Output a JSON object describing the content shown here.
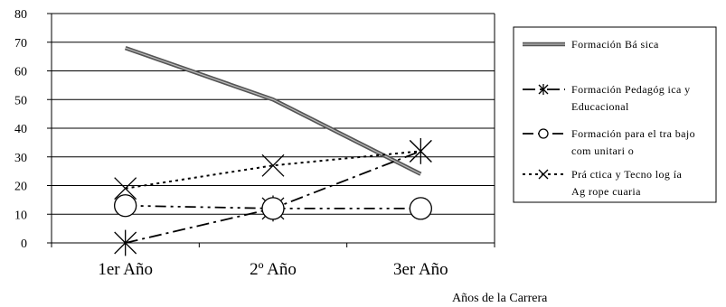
{
  "chart_data": {
    "type": "line",
    "categories": [
      "1er Año",
      "2º Año",
      "3er Año"
    ],
    "xlabel": "Años de  la Carrera",
    "ylabel": "",
    "ylim": [
      0,
      80
    ],
    "yticks": [
      0,
      10,
      20,
      30,
      40,
      50,
      60,
      70,
      80
    ],
    "grid": true,
    "legend_position": "right",
    "series": [
      {
        "name": "Formación Bá sica",
        "legend_lines": [
          "Formación Bá sica"
        ],
        "values": [
          68,
          50,
          24
        ],
        "color": "#555555",
        "style": "double-solid",
        "marker": "none"
      },
      {
        "name": "Formación Pedagógica y Educacional",
        "legend_lines": [
          "Formación Pedagóg ica y",
          "Educacional"
        ],
        "values": [
          0,
          12,
          32
        ],
        "color": "#000000",
        "style": "dash-dot",
        "marker": "asterisk"
      },
      {
        "name": "Formación para el trabajo comunitario",
        "legend_lines": [
          "Formación para el tra bajo",
          "com unitari o"
        ],
        "values": [
          13,
          12,
          12
        ],
        "color": "#000000",
        "style": "dash-dot-dot",
        "marker": "circle"
      },
      {
        "name": "Práctica y Tecnología Agropecuaria",
        "legend_lines": [
          "Prá ctica y Tecno log ía",
          "Ag rope cuaria"
        ],
        "values": [
          19,
          27,
          32
        ],
        "color": "#000000",
        "style": "dotted",
        "marker": "x"
      }
    ]
  }
}
